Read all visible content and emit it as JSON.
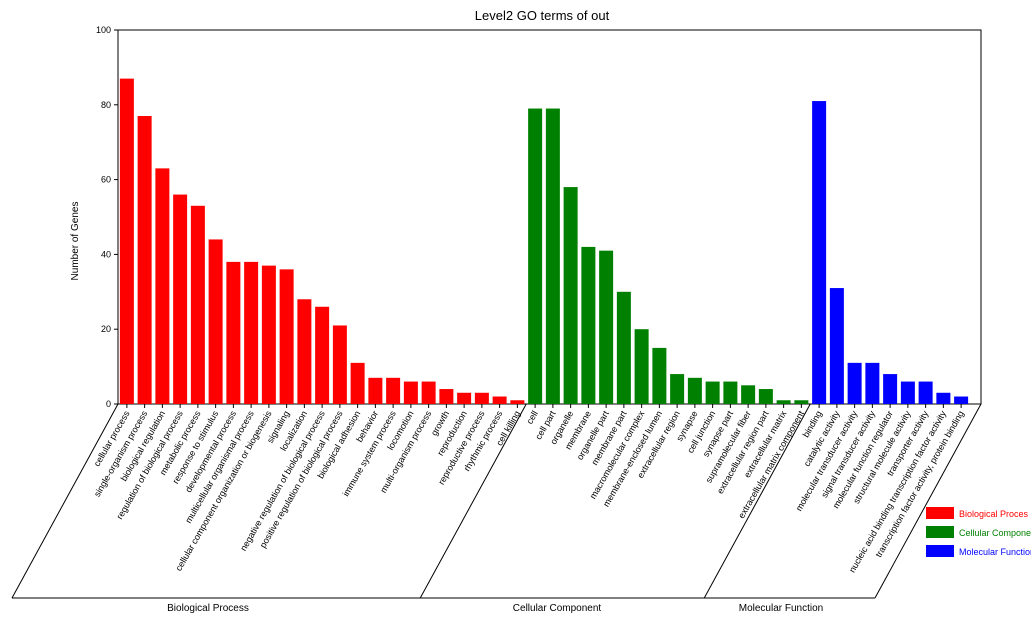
{
  "chart_data": {
    "type": "bar",
    "title": "Level2 GO terms of out",
    "ylabel": "Number of Genes",
    "xlabel": "",
    "ylim": [
      0,
      100
    ],
    "yticks": [
      0,
      20,
      40,
      60,
      80,
      100
    ],
    "grid": false,
    "legend_position": "bottom-right",
    "series": [
      {
        "name": "Biological Process",
        "legend_label": "Biological Proces",
        "group_label": "Biological Process",
        "color": "#ff0000",
        "categories": [
          "cellular process",
          "single-organism process",
          "biological regulation",
          "regulation of biological process",
          "metabolic process",
          "response to stimulus",
          "developmental process",
          "multicellular organismal process",
          "cellular component organization or biogenesis",
          "signaling",
          "localization",
          "negative regulation of biological process",
          "positive regulation of biological process",
          "biological adhesion",
          "behavior",
          "immune system process",
          "locomotion",
          "multi-organism process",
          "growth",
          "reproduction",
          "reproductive process",
          "rhythmic process",
          "cell killing"
        ],
        "values": [
          87,
          77,
          63,
          56,
          53,
          44,
          38,
          38,
          37,
          36,
          28,
          26,
          21,
          11,
          7,
          7,
          6,
          6,
          4,
          3,
          3,
          2,
          1
        ]
      },
      {
        "name": "Cellular Component",
        "legend_label": "Cellular Component",
        "group_label": "Cellular Component",
        "color": "#008000",
        "categories": [
          "cell",
          "cell part",
          "organelle",
          "membrane",
          "organelle part",
          "membrane part",
          "macromolecular complex",
          "membrane-enclosed lumen",
          "extracellular region",
          "synapse",
          "cell junction",
          "synapse part",
          "supramolecular fiber",
          "extracellular region part",
          "extracellular matrix",
          "extracellular matrix component"
        ],
        "values": [
          79,
          79,
          58,
          42,
          41,
          30,
          20,
          15,
          8,
          7,
          6,
          6,
          5,
          4,
          1,
          1
        ]
      },
      {
        "name": "Molecular Function",
        "legend_label": "Molecular Function",
        "group_label": "Molecular Function",
        "color": "#0000ff",
        "categories": [
          "binding",
          "catalytic activity",
          "molecular transducer activity",
          "signal transducer activity",
          "molecular function regulator",
          "structural molecule activity",
          "transporter activity",
          "nucleic acid binding transcription factor activity",
          "transcription factor activity, protein binding"
        ],
        "values": [
          81,
          31,
          11,
          11,
          8,
          6,
          6,
          3,
          2
        ]
      }
    ]
  }
}
